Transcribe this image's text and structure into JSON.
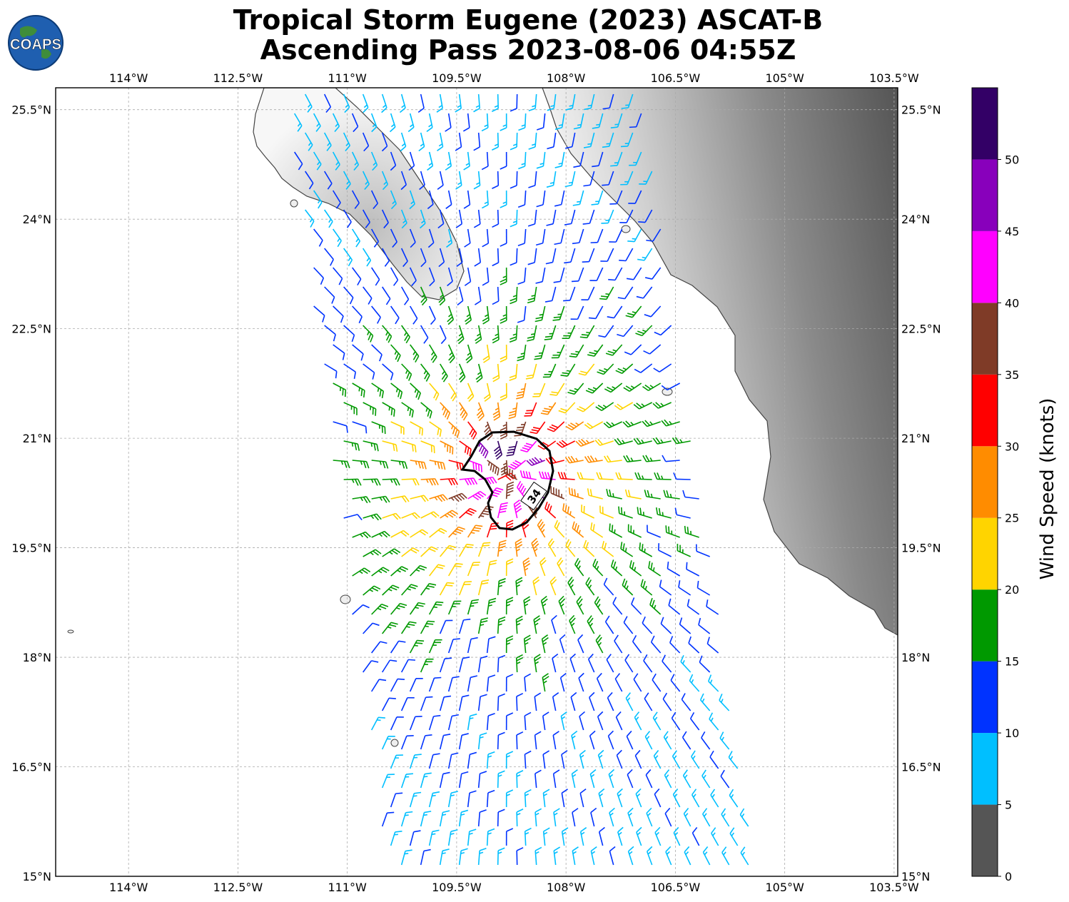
{
  "title": {
    "line1": "Tropical Storm Eugene (2023) ASCAT-B",
    "line2": "Ascending Pass 2023-08-06 04:55Z"
  },
  "logo": {
    "text": "COAPS",
    "icon": "globe-logo-icon"
  },
  "axes": {
    "lon_ticks": [
      "114°W",
      "112.5°W",
      "111°W",
      "109.5°W",
      "108°W",
      "106.5°W",
      "105°W",
      "103.5°W"
    ],
    "lat_ticks": [
      "25.5°N",
      "24°N",
      "22.5°N",
      "21°N",
      "19.5°N",
      "18°N",
      "16.5°N",
      "15°N"
    ],
    "lon_range": [
      -115,
      -103.45
    ],
    "lat_range": [
      15,
      25.8
    ],
    "grid": true
  },
  "colorbar": {
    "label": "Wind Speed (knots)",
    "ticks": [
      "0",
      "5",
      "10",
      "15",
      "20",
      "25",
      "30",
      "35",
      "40",
      "45",
      "50"
    ],
    "bins": [
      {
        "from": 0,
        "to": 5,
        "color": "#555555"
      },
      {
        "from": 5,
        "to": 10,
        "color": "#00bfff"
      },
      {
        "from": 10,
        "to": 15,
        "color": "#0033ff"
      },
      {
        "from": 15,
        "to": 20,
        "color": "#009900"
      },
      {
        "from": 20,
        "to": 25,
        "color": "#ffd400"
      },
      {
        "from": 25,
        "to": 30,
        "color": "#ff8c00"
      },
      {
        "from": 30,
        "to": 35,
        "color": "#ff0000"
      },
      {
        "from": 35,
        "to": 40,
        "color": "#7f3b27"
      },
      {
        "from": 40,
        "to": 45,
        "color": "#ff00ff"
      },
      {
        "from": 45,
        "to": 50,
        "color": "#8800bb"
      },
      {
        "from": 50,
        "to": 55,
        "color": "#330066"
      }
    ]
  },
  "storm": {
    "center_lon": -108.8,
    "center_lat": 20.5,
    "contour_label": "34",
    "contour_kt": 34
  }
}
